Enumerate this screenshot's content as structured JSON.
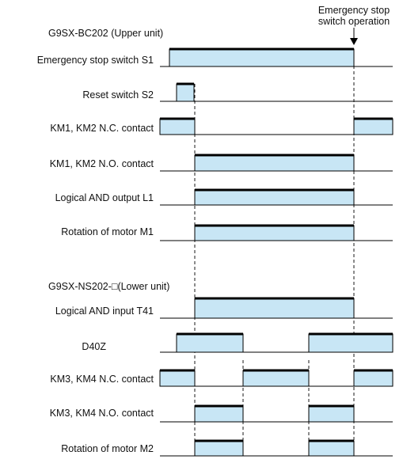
{
  "colors": {
    "pulse_fill": "#c8e6f5",
    "pulse_stroke": "#000000",
    "background": "#ffffff"
  },
  "header": {
    "upper_unit_title": "G9SX-BC202 (Upper unit)",
    "lower_unit_title": "G9SX-NS202-□(Lower unit)",
    "annotation_line1": "Emergency stop",
    "annotation_line2": "switch operation"
  },
  "signals": [
    {
      "label": "Emergency stop switch S1",
      "states": "on from S1 activation until emergency stop switch operation"
    },
    {
      "label": "Reset switch S2",
      "states": "short pulse"
    },
    {
      "label": "KM1, KM2 N.C. contact",
      "states": "on, off, on"
    },
    {
      "label": "KM1, KM2 N.O. contact",
      "states": "off, on, off"
    },
    {
      "label": "Logical AND output L1",
      "states": "off, on, off"
    },
    {
      "label": "Rotation of motor M1",
      "states": "off, on, off"
    },
    {
      "label": "Logical AND input T41",
      "states": "off, on, off"
    },
    {
      "label": "D40Z",
      "states": "two pulses"
    },
    {
      "label": "KM3, KM4 N.C. contact",
      "states": "on, off, on, off, on"
    },
    {
      "label": "KM3, KM4 N.O. contact",
      "states": "off, on, off, on, off"
    },
    {
      "label": "Rotation of motor M2",
      "states": "off, on, off, on, off"
    }
  ]
}
